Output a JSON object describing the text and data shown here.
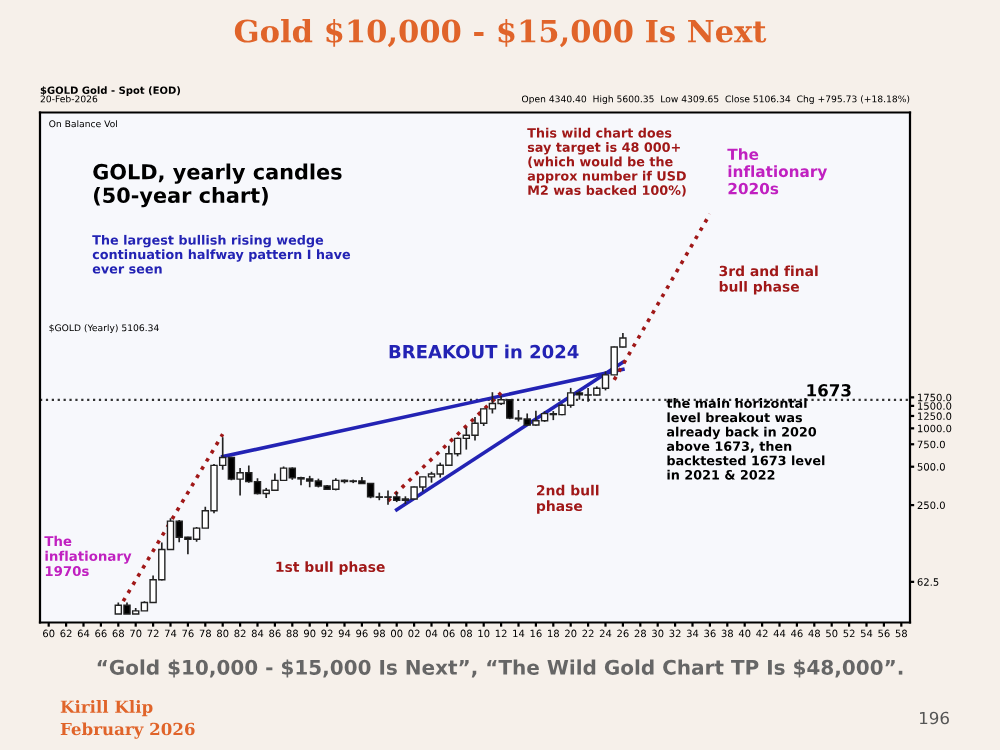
{
  "chart_data": {
    "type": "candlestick",
    "title": "Gold $10,000 - $15,000 Is Next",
    "x": [
      1968,
      1969,
      1970,
      1971,
      1972,
      1973,
      1974,
      1975,
      1976,
      1977,
      1978,
      1979,
      1980,
      1981,
      1982,
      1983,
      1984,
      1985,
      1986,
      1987,
      1988,
      1989,
      1990,
      1991,
      1992,
      1993,
      1994,
      1995,
      1996,
      1997,
      1998,
      1999,
      2000,
      2001,
      2002,
      2003,
      2004,
      2005,
      2006,
      2007,
      2008,
      2009,
      2010,
      2011,
      2012,
      2013,
      2014,
      2015,
      2016,
      2017,
      2018,
      2019,
      2020,
      2021,
      2022,
      2023,
      2024,
      2025,
      2026
    ],
    "ohlc": [
      [
        35,
        43,
        35,
        41
      ],
      [
        41,
        43,
        35,
        35
      ],
      [
        35,
        39,
        35,
        37
      ],
      [
        37,
        44,
        37,
        43
      ],
      [
        43,
        70,
        43,
        65
      ],
      [
        65,
        127,
        64,
        112
      ],
      [
        112,
        197,
        111,
        187
      ],
      [
        187,
        191,
        128,
        140
      ],
      [
        140,
        141,
        103,
        135
      ],
      [
        135,
        168,
        129,
        165
      ],
      [
        165,
        243,
        165,
        226
      ],
      [
        226,
        524,
        216,
        512
      ],
      [
        512,
        850,
        474,
        590
      ],
      [
        590,
        599,
        391,
        400
      ],
      [
        400,
        488,
        297,
        448
      ],
      [
        448,
        510,
        374,
        382
      ],
      [
        382,
        406,
        303,
        308
      ],
      [
        308,
        341,
        284,
        327
      ],
      [
        327,
        442,
        326,
        391
      ],
      [
        391,
        502,
        390,
        487
      ],
      [
        487,
        494,
        395,
        410
      ],
      [
        410,
        418,
        358,
        401
      ],
      [
        401,
        424,
        345,
        386
      ],
      [
        386,
        403,
        344,
        353
      ],
      [
        353,
        360,
        330,
        333
      ],
      [
        333,
        406,
        326,
        391
      ],
      [
        391,
        397,
        370,
        383
      ],
      [
        383,
        396,
        372,
        387
      ],
      [
        387,
        416,
        367,
        369
      ],
      [
        369,
        372,
        283,
        290
      ],
      [
        290,
        313,
        273,
        288
      ],
      [
        288,
        326,
        252,
        290
      ],
      [
        290,
        317,
        264,
        272
      ],
      [
        272,
        293,
        255,
        279
      ],
      [
        279,
        349,
        277,
        347
      ],
      [
        347,
        417,
        319,
        416
      ],
      [
        416,
        456,
        375,
        438
      ],
      [
        438,
        538,
        411,
        513
      ],
      [
        513,
        730,
        513,
        632
      ],
      [
        632,
        845,
        603,
        834
      ],
      [
        834,
        1011,
        681,
        883
      ],
      [
        883,
        1226,
        802,
        1096
      ],
      [
        1096,
        1431,
        1044,
        1421
      ],
      [
        1421,
        1920,
        1308,
        1566
      ],
      [
        1566,
        1796,
        1527,
        1675
      ],
      [
        1675,
        1696,
        1180,
        1202
      ],
      [
        1202,
        1392,
        1131,
        1184
      ],
      [
        1184,
        1308,
        1046,
        1061
      ],
      [
        1061,
        1375,
        1046,
        1146
      ],
      [
        1146,
        1358,
        1124,
        1303
      ],
      [
        1303,
        1366,
        1160,
        1282
      ],
      [
        1282,
        1557,
        1266,
        1517
      ],
      [
        1517,
        2075,
        1451,
        1898
      ],
      [
        1898,
        1959,
        1677,
        1829
      ],
      [
        1829,
        2070,
        1614,
        1824
      ],
      [
        1824,
        2135,
        1804,
        2063
      ],
      [
        2063,
        2790,
        1984,
        2625
      ],
      [
        2625,
        4380,
        2614,
        4340
      ],
      [
        4340.4,
        5600.35,
        4309.65,
        5106.34
      ]
    ],
    "series": [
      {
        "type": "line",
        "color": "#2323b4",
        "x": [
          1980,
          2026
        ],
        "values": [
          600,
          2900
        ]
      },
      {
        "type": "line",
        "color": "#2323b4",
        "x": [
          2000,
          2026
        ],
        "values": [
          230,
          3300
        ]
      },
      {
        "type": "line",
        "color": "#a01818",
        "line_style": "dotted",
        "x": [
          1968,
          1980
        ],
        "values": [
          38,
          900
        ]
      },
      {
        "type": "line",
        "color": "#a01818",
        "line_style": "dotted",
        "x": [
          1999,
          2012
        ],
        "values": [
          270,
          1900
        ]
      },
      {
        "type": "line",
        "color": "#a01818",
        "line_style": "dotted",
        "x": [
          2025,
          2036
        ],
        "values": [
          2400,
          48000
        ]
      }
    ],
    "ref_lines": [
      {
        "axis": "y",
        "value": 1673,
        "label": "1673",
        "line_style": "dotted",
        "color": "#333333"
      }
    ],
    "log": true,
    "ylim": [
      30,
      300000
    ],
    "yticks": [
      {
        "value": 62.5,
        "label": "62.5"
      },
      {
        "value": 250,
        "label": "250.0"
      },
      {
        "value": 500,
        "label": "500.0"
      },
      {
        "value": 750,
        "label": "750.0"
      },
      {
        "value": 1000,
        "label": "1000.0"
      },
      {
        "value": 1250,
        "label": "1250.0"
      },
      {
        "value": 1500,
        "label": "1500.0"
      },
      {
        "value": 1750,
        "label": "1750.0"
      }
    ],
    "xlim": [
      1959,
      2059
    ],
    "xticks": [
      {
        "value": 1960,
        "label": "60"
      },
      {
        "value": 1962,
        "label": "62"
      },
      {
        "value": 1964,
        "label": "64"
      },
      {
        "value": 1966,
        "label": "66"
      },
      {
        "value": 1968,
        "label": "68"
      },
      {
        "value": 1970,
        "label": "70"
      },
      {
        "value": 1972,
        "label": "72"
      },
      {
        "value": 1974,
        "label": "74"
      },
      {
        "value": 1976,
        "label": "76"
      },
      {
        "value": 1978,
        "label": "78"
      },
      {
        "value": 1980,
        "label": "80"
      },
      {
        "value": 1982,
        "label": "82"
      },
      {
        "value": 1984,
        "label": "84"
      },
      {
        "value": 1986,
        "label": "86"
      },
      {
        "value": 1988,
        "label": "88"
      },
      {
        "value": 1990,
        "label": "90"
      },
      {
        "value": 1992,
        "label": "92"
      },
      {
        "value": 1994,
        "label": "94"
      },
      {
        "value": 1996,
        "label": "96"
      },
      {
        "value": 1998,
        "label": "98"
      },
      {
        "value": 2000,
        "label": "00"
      },
      {
        "value": 2002,
        "label": "02"
      },
      {
        "value": 2004,
        "label": "04"
      },
      {
        "value": 2006,
        "label": "06"
      },
      {
        "value": 2008,
        "label": "08"
      },
      {
        "value": 2010,
        "label": "10"
      },
      {
        "value": 2012,
        "label": "12"
      },
      {
        "value": 2014,
        "label": "14"
      },
      {
        "value": 2016,
        "label": "16"
      },
      {
        "value": 2018,
        "label": "18"
      },
      {
        "value": 2020,
        "label": "20"
      },
      {
        "value": 2022,
        "label": "22"
      },
      {
        "value": 2024,
        "label": "24"
      },
      {
        "value": 2026,
        "label": "26"
      },
      {
        "value": 2028,
        "label": "28"
      },
      {
        "value": 2030,
        "label": "30"
      },
      {
        "value": 2032,
        "label": "32"
      },
      {
        "value": 2034,
        "label": "34"
      },
      {
        "value": 2036,
        "label": "36"
      },
      {
        "value": 2038,
        "label": "38"
      },
      {
        "value": 2040,
        "label": "40"
      },
      {
        "value": 2042,
        "label": "42"
      },
      {
        "value": 2044,
        "label": "44"
      },
      {
        "value": 2046,
        "label": "46"
      },
      {
        "value": 2048,
        "label": "48"
      },
      {
        "value": 2050,
        "label": "50"
      },
      {
        "value": 2052,
        "label": "52"
      },
      {
        "value": 2054,
        "label": "54"
      },
      {
        "value": 2056,
        "label": "56"
      },
      {
        "value": 2058,
        "label": "58"
      }
    ],
    "grid": false,
    "annotations": [
      "GOLD, yearly candles\n(50-year chart)",
      "The largest bullish rising wedge\ncontinuation halfway pattern I have\never seen",
      "This wild chart does\nsay target is 48 000+\n(which would be the\napprox number if USD\nM2 was backed 100%)",
      "The\ninflationary\n2020s",
      "3rd and final\nbull phase",
      "BREAKOUT in 2024",
      "the main horizontal\nlevel breakout was\nalready back in 2020\nabove 1673, then\nbacktested 1673 level\nin 2021 & 2022",
      "The\ninflationary\n1970s",
      "1st bull phase",
      "2nd bull\nphase",
      "$GOLD Gold - Spot (EOD)",
      "20-Feb-2026",
      "Open 4340.40  High 5600.35  Low 4309.65  Close 5106.34  Chg +795.73 (+18.18%)",
      "On Balance Vol",
      "$GOLD (Yearly) 5106.34",
      "“Gold $10,000 - $15,000 Is Next”, “The Wild Gold Chart TP Is $48,000”.",
      "Kirill Klip",
      "February 2026",
      "196"
    ]
  }
}
